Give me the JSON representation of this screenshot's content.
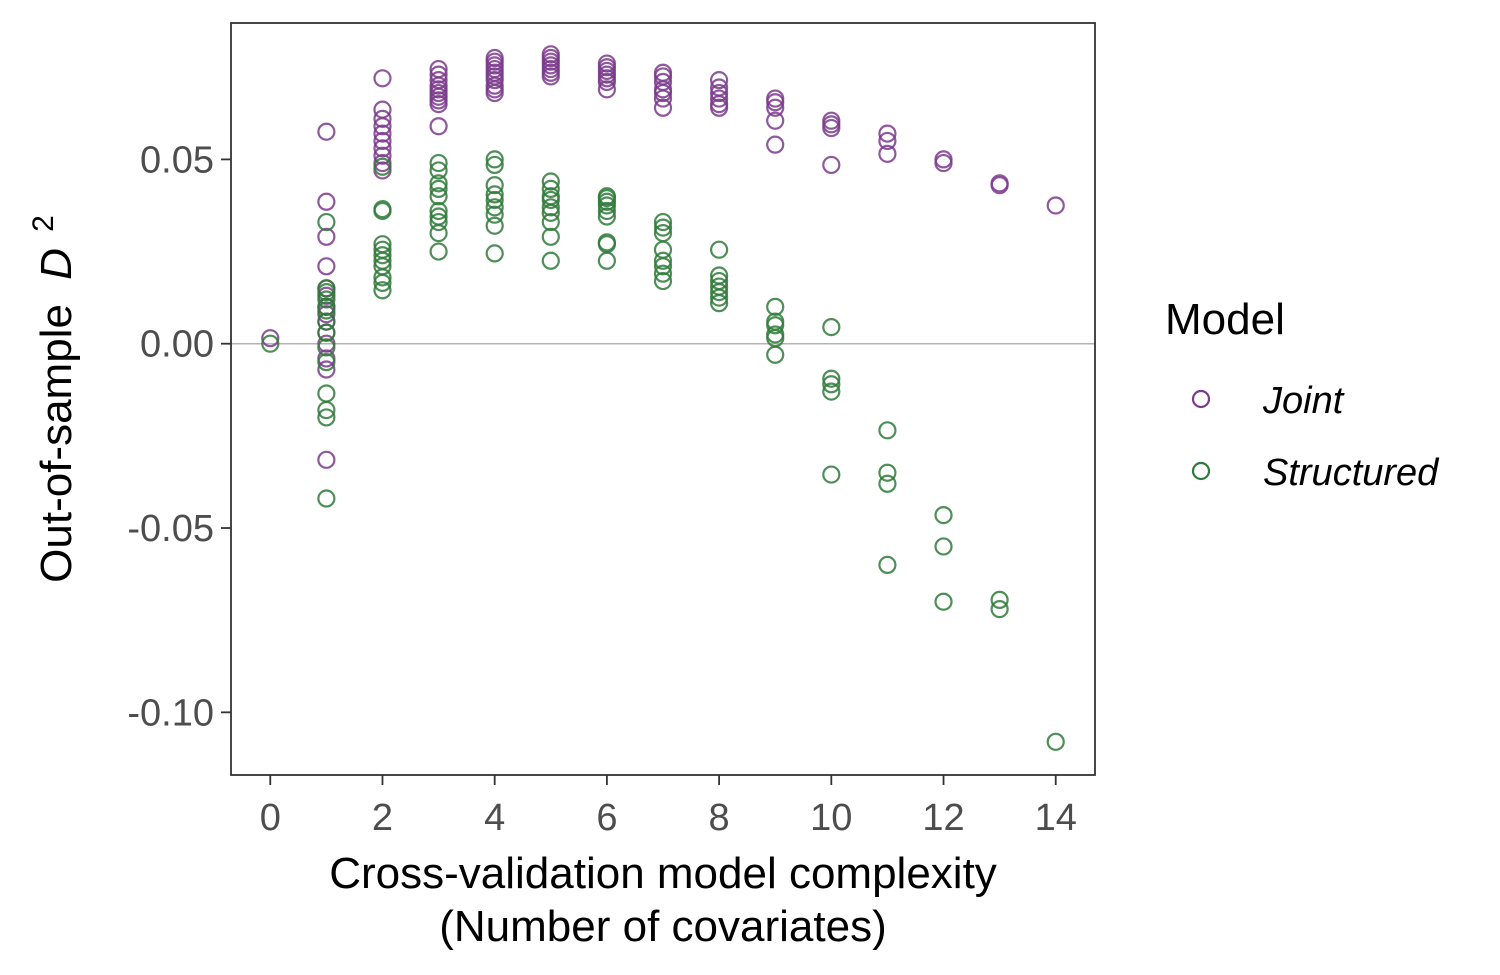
{
  "chart_data": {
    "type": "scatter",
    "xlabel": "Cross-validation model complexity",
    "xlabel_line2": "(Number of covariates)",
    "ylabel_prefix": "Out-of-sample",
    "ylabel_symbol": "D",
    "ylabel_superscript": "2",
    "xlim": [
      -0.7,
      14.7
    ],
    "ylim": [
      -0.117,
      0.087
    ],
    "x_ticks": [
      0,
      2,
      4,
      6,
      8,
      10,
      12,
      14
    ],
    "x_tick_labels": [
      "0",
      "2",
      "4",
      "6",
      "8",
      "10",
      "12",
      "14"
    ],
    "y_ticks": [
      -0.1,
      -0.05,
      0.0,
      0.05
    ],
    "y_tick_labels": [
      "-0.10",
      "-0.05",
      "0.00",
      "0.05"
    ],
    "reference_line_y": 0,
    "grid": false,
    "legend": {
      "title": "Model",
      "placement": "right"
    },
    "colors": {
      "Joint": "#7b3a8c",
      "Structured": "#2f7a3a",
      "reference_line": "#b3b3b3"
    },
    "marker": "open-circle",
    "series": [
      {
        "name": "Joint",
        "points": [
          [
            0,
            0.0015
          ],
          [
            1,
            0.0575
          ],
          [
            1,
            0.0385
          ],
          [
            1,
            0.029
          ],
          [
            1,
            0.021
          ],
          [
            1,
            0.015
          ],
          [
            1,
            0.013
          ],
          [
            1,
            0.01
          ],
          [
            1,
            0.008
          ],
          [
            1,
            0.006
          ],
          [
            1,
            0.003
          ],
          [
            1,
            0.0
          ],
          [
            1,
            -0.004
          ],
          [
            1,
            -0.007
          ],
          [
            1,
            -0.0315
          ],
          [
            2,
            0.072
          ],
          [
            2,
            0.0635
          ],
          [
            2,
            0.061
          ],
          [
            2,
            0.059
          ],
          [
            2,
            0.057
          ],
          [
            2,
            0.055
          ],
          [
            2,
            0.053
          ],
          [
            2,
            0.051
          ],
          [
            2,
            0.049
          ],
          [
            2,
            0.047
          ],
          [
            3,
            0.0745
          ],
          [
            3,
            0.073
          ],
          [
            3,
            0.0715
          ],
          [
            3,
            0.07
          ],
          [
            3,
            0.069
          ],
          [
            3,
            0.068
          ],
          [
            3,
            0.067
          ],
          [
            3,
            0.066
          ],
          [
            3,
            0.065
          ],
          [
            3,
            0.059
          ],
          [
            4,
            0.0775
          ],
          [
            4,
            0.0765
          ],
          [
            4,
            0.0755
          ],
          [
            4,
            0.0745
          ],
          [
            4,
            0.0735
          ],
          [
            4,
            0.0725
          ],
          [
            4,
            0.0715
          ],
          [
            4,
            0.07
          ],
          [
            4,
            0.069
          ],
          [
            4,
            0.068
          ],
          [
            5,
            0.0785
          ],
          [
            5,
            0.0775
          ],
          [
            5,
            0.0765
          ],
          [
            5,
            0.0755
          ],
          [
            5,
            0.0745
          ],
          [
            5,
            0.0735
          ],
          [
            5,
            0.0725
          ],
          [
            6,
            0.076
          ],
          [
            6,
            0.075
          ],
          [
            6,
            0.074
          ],
          [
            6,
            0.073
          ],
          [
            6,
            0.072
          ],
          [
            6,
            0.071
          ],
          [
            6,
            0.069
          ],
          [
            7,
            0.0735
          ],
          [
            7,
            0.0725
          ],
          [
            7,
            0.071
          ],
          [
            7,
            0.069
          ],
          [
            7,
            0.068
          ],
          [
            7,
            0.0665
          ],
          [
            7,
            0.064
          ],
          [
            8,
            0.0715
          ],
          [
            8,
            0.0695
          ],
          [
            8,
            0.068
          ],
          [
            8,
            0.0665
          ],
          [
            8,
            0.065
          ],
          [
            8,
            0.064
          ],
          [
            9,
            0.0665
          ],
          [
            9,
            0.0655
          ],
          [
            9,
            0.064
          ],
          [
            9,
            0.0605
          ],
          [
            9,
            0.054
          ],
          [
            10,
            0.0605
          ],
          [
            10,
            0.0595
          ],
          [
            10,
            0.0585
          ],
          [
            10,
            0.0485
          ],
          [
            11,
            0.057
          ],
          [
            11,
            0.055
          ],
          [
            11,
            0.0515
          ],
          [
            12,
            0.05
          ],
          [
            12,
            0.049
          ],
          [
            13,
            0.0435
          ],
          [
            13,
            0.043
          ],
          [
            14,
            0.0375
          ]
        ]
      },
      {
        "name": "Structured",
        "points": [
          [
            0,
            0.0
          ],
          [
            1,
            0.033
          ],
          [
            1,
            0.015
          ],
          [
            1,
            0.014
          ],
          [
            1,
            0.012
          ],
          [
            1,
            0.01
          ],
          [
            1,
            0.009
          ],
          [
            1,
            0.006
          ],
          [
            1,
            0.003
          ],
          [
            1,
            -0.001
          ],
          [
            1,
            -0.005
          ],
          [
            1,
            -0.0135
          ],
          [
            1,
            -0.018
          ],
          [
            1,
            -0.02
          ],
          [
            1,
            -0.042
          ],
          [
            2,
            0.048
          ],
          [
            2,
            0.0365
          ],
          [
            2,
            0.036
          ],
          [
            2,
            0.027
          ],
          [
            2,
            0.0255
          ],
          [
            2,
            0.024
          ],
          [
            2,
            0.0225
          ],
          [
            2,
            0.021
          ],
          [
            2,
            0.018
          ],
          [
            2,
            0.0165
          ],
          [
            2,
            0.0145
          ],
          [
            3,
            0.049
          ],
          [
            3,
            0.047
          ],
          [
            3,
            0.0435
          ],
          [
            3,
            0.042
          ],
          [
            3,
            0.04
          ],
          [
            3,
            0.036
          ],
          [
            3,
            0.0345
          ],
          [
            3,
            0.033
          ],
          [
            3,
            0.03
          ],
          [
            3,
            0.025
          ],
          [
            4,
            0.05
          ],
          [
            4,
            0.0485
          ],
          [
            4,
            0.043
          ],
          [
            4,
            0.0405
          ],
          [
            4,
            0.039
          ],
          [
            4,
            0.037
          ],
          [
            4,
            0.035
          ],
          [
            4,
            0.032
          ],
          [
            4,
            0.0245
          ],
          [
            5,
            0.044
          ],
          [
            5,
            0.042
          ],
          [
            5,
            0.04
          ],
          [
            5,
            0.039
          ],
          [
            5,
            0.037
          ],
          [
            5,
            0.0355
          ],
          [
            5,
            0.033
          ],
          [
            5,
            0.029
          ],
          [
            5,
            0.0225
          ],
          [
            6,
            0.04
          ],
          [
            6,
            0.0395
          ],
          [
            6,
            0.0385
          ],
          [
            6,
            0.0375
          ],
          [
            6,
            0.036
          ],
          [
            6,
            0.0345
          ],
          [
            6,
            0.0275
          ],
          [
            6,
            0.027
          ],
          [
            6,
            0.0225
          ],
          [
            7,
            0.033
          ],
          [
            7,
            0.0315
          ],
          [
            7,
            0.03
          ],
          [
            7,
            0.0255
          ],
          [
            7,
            0.0225
          ],
          [
            7,
            0.021
          ],
          [
            7,
            0.019
          ],
          [
            7,
            0.017
          ],
          [
            8,
            0.0255
          ],
          [
            8,
            0.0185
          ],
          [
            8,
            0.017
          ],
          [
            8,
            0.0155
          ],
          [
            8,
            0.014
          ],
          [
            8,
            0.0125
          ],
          [
            8,
            0.011
          ],
          [
            9,
            0.01
          ],
          [
            9,
            0.006
          ],
          [
            9,
            0.005
          ],
          [
            9,
            0.0025
          ],
          [
            9,
            0.0015
          ],
          [
            9,
            -0.003
          ],
          [
            10,
            0.0045
          ],
          [
            10,
            -0.0095
          ],
          [
            10,
            -0.011
          ],
          [
            10,
            -0.013
          ],
          [
            10,
            -0.0355
          ],
          [
            11,
            -0.0235
          ],
          [
            11,
            -0.035
          ],
          [
            11,
            -0.038
          ],
          [
            11,
            -0.06
          ],
          [
            12,
            -0.0465
          ],
          [
            12,
            -0.055
          ],
          [
            12,
            -0.07
          ],
          [
            13,
            -0.0695
          ],
          [
            13,
            -0.072
          ],
          [
            14,
            -0.108
          ]
        ]
      }
    ]
  }
}
